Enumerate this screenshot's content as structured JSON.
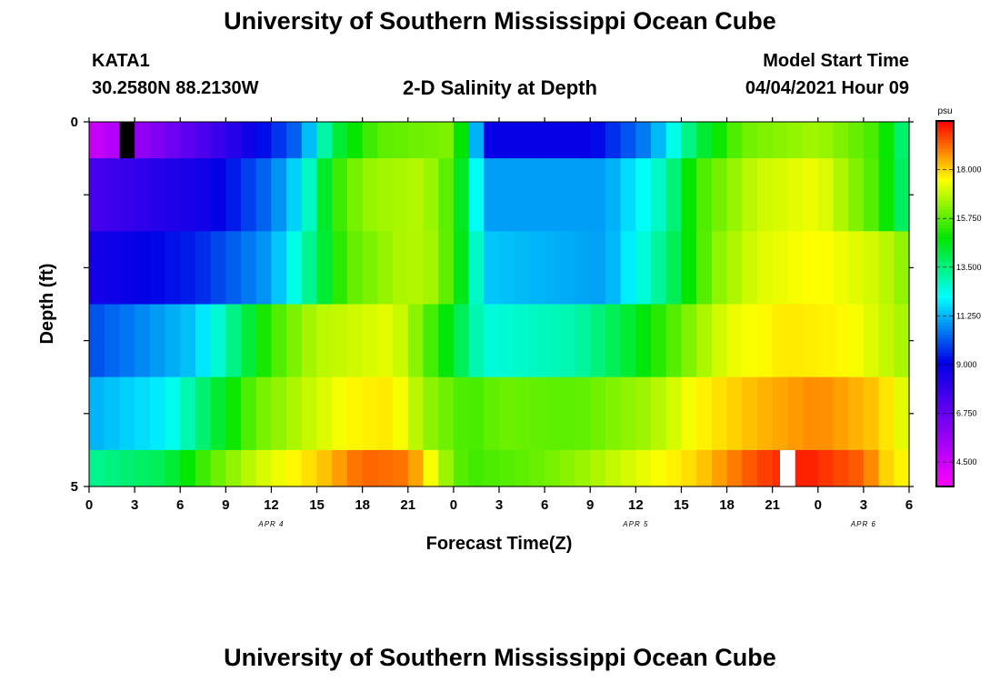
{
  "title_top": "University of Southern Mississippi Ocean Cube",
  "title_bottom": "University of Southern Mississippi Ocean Cube",
  "station": {
    "name": "KATA1",
    "coords": "30.2580N  88.2130W"
  },
  "plot_title": "2-D Salinity at Depth",
  "model_start": {
    "label": "Model Start Time",
    "value": "04/04/2021 Hour 09"
  },
  "chart_data": {
    "type": "heatmap",
    "xlabel": "Forecast Time(Z)",
    "ylabel": "Depth (ft)",
    "x_hours": [
      0,
      54
    ],
    "x_tick_labels": [
      "0",
      "3",
      "6",
      "9",
      "12",
      "15",
      "18",
      "21",
      "0",
      "3",
      "6",
      "9",
      "12",
      "15",
      "18",
      "21",
      "0",
      "3",
      "6"
    ],
    "date_labels": [
      {
        "text": "APR 4",
        "hour": 12
      },
      {
        "text": "APR 5",
        "hour": 36
      },
      {
        "text": "APR 6",
        "hour": 51
      }
    ],
    "y_range": [
      0,
      5
    ],
    "y_tick_labels": [
      "0",
      "5"
    ],
    "colorbar": {
      "unit": "psu",
      "range": [
        3.375,
        20.25
      ],
      "tick_labels": [
        "4.500",
        "6.750",
        "9.000",
        "11.250",
        "13.500",
        "15.750",
        "18.000"
      ],
      "tick_values": [
        4.5,
        6.75,
        9.0,
        11.25,
        13.5,
        15.75,
        18.0
      ]
    },
    "rows": [
      {
        "depth": [
          0.0,
          0.5
        ],
        "keys": [
          [
            0,
            4.5
          ],
          [
            9,
            8.0
          ],
          [
            14,
            10.5
          ],
          [
            16,
            14
          ],
          [
            19,
            15.8
          ],
          [
            24,
            16.2
          ],
          [
            25,
            13.5
          ],
          [
            26,
            9.0
          ],
          [
            33,
            9.0
          ],
          [
            37,
            10.8
          ],
          [
            40,
            14
          ],
          [
            43,
            16
          ],
          [
            48,
            16.6
          ],
          [
            52,
            15.5
          ],
          [
            53.3,
            14
          ],
          [
            54,
            13
          ]
        ]
      },
      {
        "depth": [
          0.5,
          1.5
        ],
        "keys": [
          [
            0,
            7.5
          ],
          [
            8,
            8.8
          ],
          [
            12,
            10.5
          ],
          [
            14,
            12
          ],
          [
            16,
            15.2
          ],
          [
            18,
            16.4
          ],
          [
            22,
            16.8
          ],
          [
            24,
            15.5
          ],
          [
            25,
            13.5
          ],
          [
            26,
            11.0
          ],
          [
            34,
            11.0
          ],
          [
            38,
            13
          ],
          [
            40,
            15.5
          ],
          [
            44,
            17.0
          ],
          [
            48,
            17.4
          ],
          [
            52,
            15.5
          ],
          [
            53.4,
            14
          ],
          [
            54,
            13
          ]
        ]
      },
      {
        "depth": [
          1.5,
          2.5
        ],
        "keys": [
          [
            0,
            8.6
          ],
          [
            7,
            9.5
          ],
          [
            12,
            11.0
          ],
          [
            15,
            13.8
          ],
          [
            17,
            15.8
          ],
          [
            21,
            16.8
          ],
          [
            23,
            16.5
          ],
          [
            25,
            14.0
          ],
          [
            26,
            11.5
          ],
          [
            34,
            11.0
          ],
          [
            38,
            13.5
          ],
          [
            41,
            16.2
          ],
          [
            44,
            17.2
          ],
          [
            48,
            17.6
          ],
          [
            52,
            17.0
          ],
          [
            54,
            16.2
          ]
        ]
      },
      {
        "depth": [
          2.5,
          3.5
        ],
        "keys": [
          [
            0,
            10.0
          ],
          [
            7,
            11.5
          ],
          [
            9,
            13.0
          ],
          [
            12,
            15.5
          ],
          [
            15,
            16.8
          ],
          [
            20,
            17.3
          ],
          [
            22,
            16.0
          ],
          [
            25,
            13.5
          ],
          [
            26,
            12.5
          ],
          [
            32,
            13.0
          ],
          [
            36,
            14.5
          ],
          [
            39,
            16.0
          ],
          [
            42,
            17.3
          ],
          [
            46,
            17.8
          ],
          [
            50,
            17.6
          ],
          [
            54,
            16.5
          ]
        ]
      },
      {
        "depth": [
          3.5,
          4.5
        ],
        "keys": [
          [
            0,
            11.2
          ],
          [
            5,
            12.0
          ],
          [
            8,
            14.0
          ],
          [
            11,
            16.0
          ],
          [
            14,
            16.8
          ],
          [
            17,
            17.6
          ],
          [
            20,
            17.8
          ],
          [
            22,
            16.5
          ],
          [
            25,
            15.5
          ],
          [
            27,
            16.0
          ],
          [
            32,
            15.8
          ],
          [
            37,
            16.6
          ],
          [
            40,
            17.6
          ],
          [
            44,
            18.3
          ],
          [
            48,
            18.8
          ],
          [
            52,
            18.1
          ],
          [
            54,
            17.0
          ]
        ]
      },
      {
        "depth": [
          4.5,
          5.0
        ],
        "keys": [
          [
            0,
            13.3
          ],
          [
            5,
            14.0
          ],
          [
            8,
            15.8
          ],
          [
            11,
            17.0
          ],
          [
            15,
            18.0
          ],
          [
            18,
            19.2
          ],
          [
            21,
            19.0
          ],
          [
            24,
            16.0
          ],
          [
            25,
            15.5
          ],
          [
            30,
            16.0
          ],
          [
            35,
            17.0
          ],
          [
            40,
            18.0
          ],
          [
            44,
            19.5
          ],
          [
            47,
            20.0
          ],
          [
            51,
            19.2
          ],
          [
            52.5,
            18.0
          ],
          [
            54,
            17.5
          ]
        ]
      }
    ],
    "special_cells": [
      {
        "hour": 2.5,
        "depth": [
          0,
          0.5
        ],
        "color": "#000000"
      },
      {
        "hour": 46,
        "depth": [
          4.5,
          5.0
        ],
        "color": "#ffffff"
      }
    ]
  }
}
